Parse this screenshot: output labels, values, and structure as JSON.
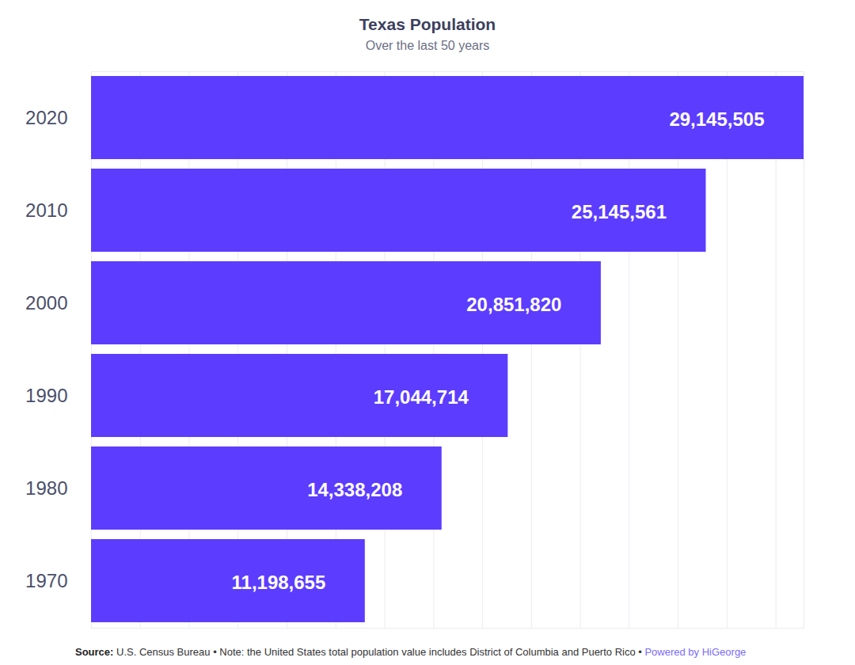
{
  "chart_data": {
    "type": "bar",
    "title": "Texas Population",
    "subtitle": "Over the last 50 years",
    "caption": [
      "Source:",
      "U.S. Census Bureau • Note: the United States total population value includes District of Columbia and Puerto Rico •",
      "Powered by HiGeorge"
    ],
    "orientation": "horizontal",
    "categories": [
      "2020",
      "2010",
      "2000",
      "1990",
      "1980",
      "1970"
    ],
    "values": [
      29145505,
      25145561,
      20851820,
      17044714,
      14338208,
      11198655
    ],
    "value_labels": [
      "29,145,505",
      "25,145,561",
      "20,851,820",
      "17,044,714",
      "14,338,208",
      "11,198,655"
    ],
    "data_labels": true,
    "color": "#5c3cff",
    "xlim": [
      0,
      29145505
    ],
    "xticks": [
      0,
      2000000,
      4000000,
      6000000,
      8000000,
      10000000,
      12000000,
      14000000,
      16000000,
      18000000,
      20000000,
      22000000,
      24000000,
      26000000,
      28000000
    ],
    "grid": true,
    "tick_labels": "y"
  }
}
